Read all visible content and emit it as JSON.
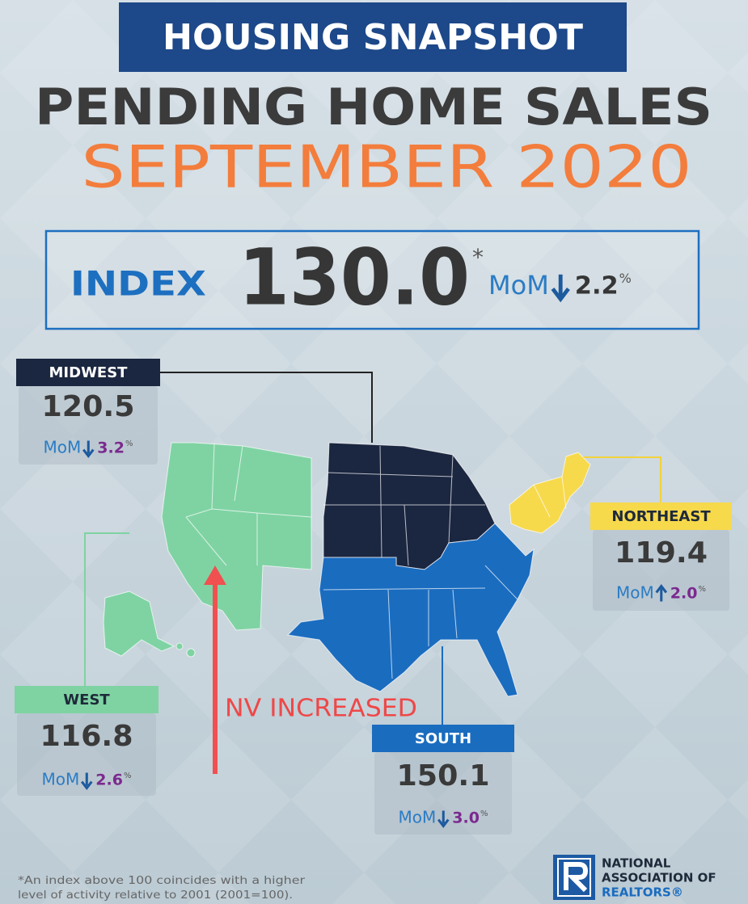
{
  "header": {
    "badge": "HOUSING SNAPSHOT",
    "title": "PENDING HOME SALES",
    "period": "SEPTEMBER 2020"
  },
  "index": {
    "label": "INDEX",
    "value": "130.0",
    "asterisk": "*",
    "mom_label": "MoM",
    "direction": "down",
    "change": "2.2",
    "unit": "%"
  },
  "regions": [
    {
      "name": "MIDWEST",
      "value": "120.5",
      "mom_label": "MoM",
      "direction": "down",
      "change": "3.2",
      "unit": "%",
      "color": "#1b2640"
    },
    {
      "name": "NORTHEAST",
      "value": "119.4",
      "mom_label": "MoM",
      "direction": "up",
      "change": "2.0",
      "unit": "%",
      "color": "#f7d94c"
    },
    {
      "name": "WEST",
      "value": "116.8",
      "mom_label": "MoM",
      "direction": "down",
      "change": "2.6",
      "unit": "%",
      "color": "#7fd3a3"
    },
    {
      "name": "SOUTH",
      "value": "150.1",
      "mom_label": "MoM",
      "direction": "down",
      "change": "3.0",
      "unit": "%",
      "color": "#1a6cbf"
    }
  ],
  "annotation": "NV INCREASED",
  "footnote": [
    "*An index above 100 coincides with a higher",
    "level of activity relative to 2001 (2001=100)."
  ],
  "logo": [
    "NATIONAL",
    "ASSOCIATION OF",
    "REALTORS®"
  ]
}
